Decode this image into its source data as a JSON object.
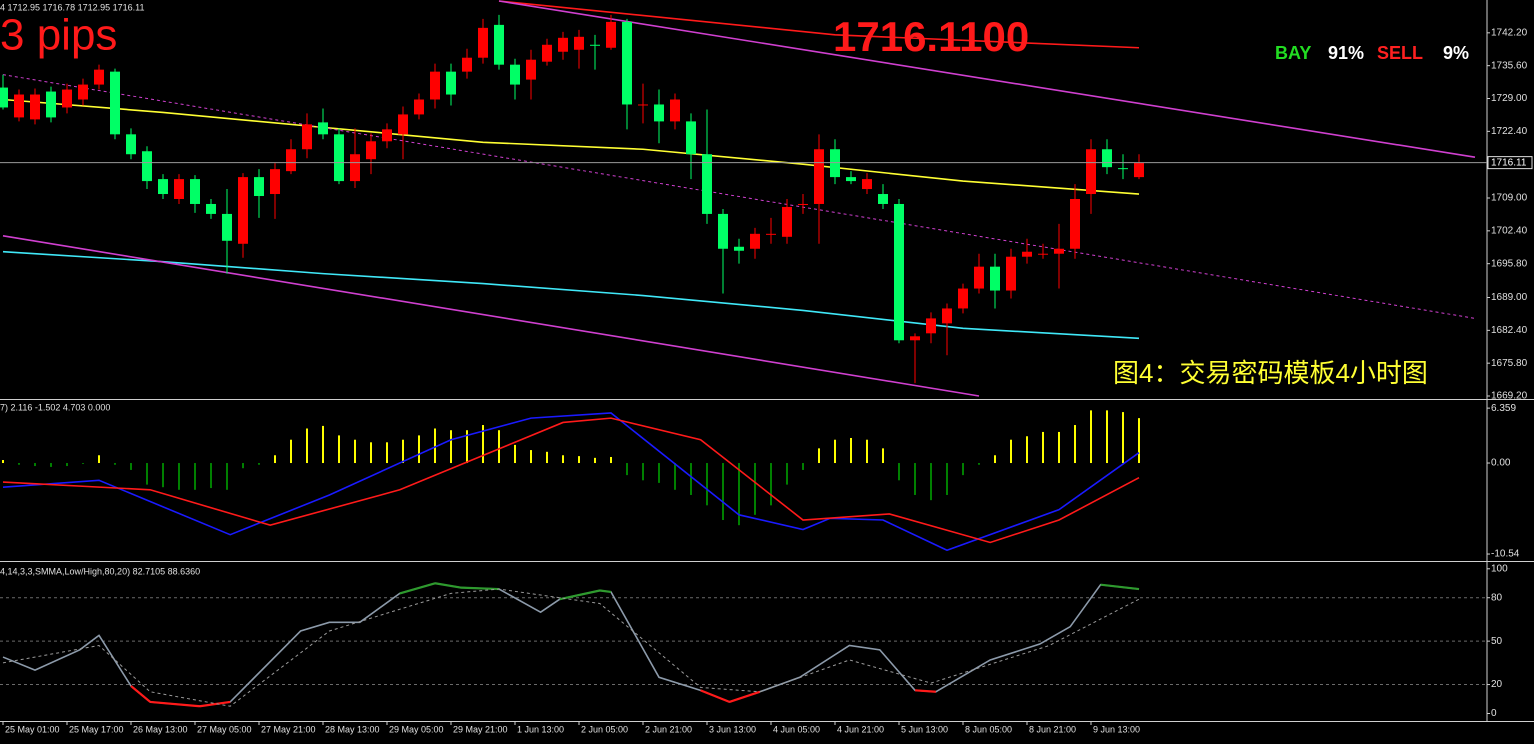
{
  "chart_data": [
    {
      "type": "candlestick",
      "header": "4  1712.95 1716.78 1712.95 1716.11",
      "categories": [
        "25 May 01:00",
        null,
        null,
        null,
        "25 May 17:00",
        null,
        null,
        null,
        "26 May 13:00",
        null,
        null,
        null,
        "27 May 05:00",
        null,
        null,
        null,
        "27 May 21:00",
        null,
        null,
        null,
        "28 May 13:00",
        null,
        null,
        null,
        "29 May 05:00",
        null,
        null,
        null,
        "29 May 21:00",
        null,
        null,
        null,
        "1 Jun 13:00",
        null,
        null,
        null,
        "2 Jun 05:00",
        null,
        null,
        null,
        "2 Jun 21:00",
        null,
        null,
        null,
        "3 Jun 13:00",
        null,
        null,
        null,
        "4 Jun 05:00",
        null,
        null,
        null,
        "4 Jun 21:00",
        null,
        null,
        null,
        "5 Jun 13:00",
        null,
        null,
        null,
        "8 Jun 05:00",
        null,
        null,
        null,
        "8 Jun 21:00",
        null,
        null,
        null,
        "9 Jun 13:00",
        null,
        null,
        null
      ],
      "ohlc": [
        [
          1731.2,
          1733.8,
          1726.8,
          1727.2
        ],
        [
          1725.2,
          1730.8,
          1724.4,
          1729.8
        ],
        [
          1724.8,
          1731,
          1723.8,
          1729.8
        ],
        [
          1730.4,
          1731.4,
          1724.2,
          1725.2
        ],
        [
          1727.2,
          1732,
          1726,
          1730.8
        ],
        [
          1728.8,
          1733,
          1727.6,
          1731.8
        ],
        [
          1731.8,
          1735.8,
          1730.8,
          1734.8
        ],
        [
          1734.4,
          1735,
          1720.8,
          1721.8
        ],
        [
          1721.8,
          1723,
          1716.8,
          1717.8
        ],
        [
          1718.4,
          1719.4,
          1710.8,
          1712.4
        ],
        [
          1712.8,
          1713.8,
          1708.8,
          1709.8
        ],
        [
          1708.8,
          1713.8,
          1707.8,
          1712.8
        ],
        [
          1712.8,
          1713.6,
          1706,
          1707.8
        ],
        [
          1707.8,
          1708.8,
          1704.8,
          1705.8
        ],
        [
          1705.8,
          1710.8,
          1693.8,
          1700.4
        ],
        [
          1699.8,
          1714,
          1697,
          1713.2
        ],
        [
          1713.2,
          1714.8,
          1705,
          1709.4
        ],
        [
          1709.8,
          1716,
          1704.8,
          1714.8
        ],
        [
          1714.4,
          1720.8,
          1713.8,
          1718.8
        ],
        [
          1718.8,
          1726,
          1717,
          1723.8
        ],
        [
          1724.2,
          1727,
          1720.8,
          1721.8
        ],
        [
          1721.8,
          1723,
          1711.8,
          1712.4
        ],
        [
          1712.4,
          1723,
          1711,
          1717.8
        ],
        [
          1716.8,
          1722,
          1713.8,
          1720.4
        ],
        [
          1720.4,
          1724,
          1719,
          1722.8
        ],
        [
          1721.8,
          1727.4,
          1716.8,
          1725.8
        ],
        [
          1725.8,
          1730,
          1724.8,
          1728.8
        ],
        [
          1728.8,
          1736,
          1727,
          1734.4
        ],
        [
          1734.4,
          1736,
          1727.6,
          1729.8
        ],
        [
          1734.4,
          1739,
          1733,
          1737.2
        ],
        [
          1737.2,
          1745,
          1736,
          1743.2
        ],
        [
          1743.8,
          1745.8,
          1734.8,
          1735.8
        ],
        [
          1735.8,
          1737,
          1728.8,
          1731.8
        ],
        [
          1732.8,
          1738.8,
          1728.8,
          1736.8
        ],
        [
          1736.4,
          1741,
          1735.6,
          1739.8
        ],
        [
          1738.4,
          1742.4,
          1736.8,
          1741.2
        ],
        [
          1738.8,
          1742.8,
          1735,
          1741.4
        ],
        [
          1739.8,
          1741.8,
          1734.8,
          1739.6
        ],
        [
          1739.2,
          1745.8,
          1738.8,
          1744.4
        ],
        [
          1744.4,
          1745,
          1722.8,
          1727.8
        ],
        [
          1727.6,
          1732,
          1724,
          1727.8
        ],
        [
          1727.8,
          1730.8,
          1720,
          1724.4
        ],
        [
          1724.4,
          1730,
          1722.8,
          1728.8
        ],
        [
          1724.4,
          1726,
          1712.8,
          1717.8
        ],
        [
          1717.8,
          1726.8,
          1703.8,
          1705.8
        ],
        [
          1705.8,
          1706.8,
          1689.8,
          1698.8
        ],
        [
          1699.2,
          1700.8,
          1695.8,
          1698.4
        ],
        [
          1698.8,
          1703,
          1696.8,
          1701.8
        ],
        [
          1701.6,
          1705,
          1699.8,
          1701.8
        ],
        [
          1701.2,
          1708.8,
          1699.8,
          1707.2
        ],
        [
          1707.6,
          1709.8,
          1705.8,
          1707.8
        ],
        [
          1707.8,
          1721.8,
          1699.8,
          1718.8
        ],
        [
          1718.8,
          1720.8,
          1711.8,
          1713.2
        ],
        [
          1713.2,
          1714.4,
          1711.8,
          1712.4
        ],
        [
          1710.8,
          1714,
          1709.8,
          1712.8
        ],
        [
          1709.8,
          1711.8,
          1706.8,
          1707.8
        ],
        [
          1707.8,
          1708.8,
          1679.8,
          1680.4
        ],
        [
          1680.4,
          1681.8,
          1671.8,
          1681.2
        ],
        [
          1681.8,
          1686,
          1679.8,
          1684.8
        ],
        [
          1683.8,
          1687.8,
          1677.4,
          1686.8
        ],
        [
          1686.8,
          1691.8,
          1685.8,
          1690.8
        ],
        [
          1690.8,
          1697.8,
          1689.8,
          1695.2
        ],
        [
          1695.2,
          1697.8,
          1686.8,
          1690.4
        ],
        [
          1690.4,
          1698.8,
          1688.8,
          1697.2
        ],
        [
          1697.2,
          1700.8,
          1695.8,
          1698.2
        ],
        [
          1697.6,
          1699.8,
          1696.8,
          1697.8
        ],
        [
          1697.8,
          1703.8,
          1690.8,
          1698.8
        ],
        [
          1698.8,
          1711.8,
          1696.8,
          1708.8
        ],
        [
          1709.8,
          1720.8,
          1705.8,
          1718.8
        ],
        [
          1718.8,
          1720.8,
          1713.8,
          1715.2
        ],
        [
          1715,
          1717.8,
          1712.8,
          1714.8
        ],
        [
          1713.2,
          1717.8,
          1712.8,
          1716.11
        ]
      ],
      "up_color": "#ff0000",
      "down_color": "#00ff66",
      "ylim": [
        1668.8,
        1748.8
      ],
      "yticks": [
        {
          "value": 1742.2,
          "label": "1742.20"
        },
        {
          "value": 1735.6,
          "label": "1735.60"
        },
        {
          "value": 1729,
          "label": "1729.00"
        },
        {
          "value": 1722.4,
          "label": "1722.40"
        },
        {
          "value": 1709,
          "label": "1709.00"
        },
        {
          "value": 1702.4,
          "label": "1702.40"
        },
        {
          "value": 1695.8,
          "label": "1695.80"
        },
        {
          "value": 1689,
          "label": "1689.00"
        },
        {
          "value": 1682.4,
          "label": "1682.40"
        },
        {
          "value": 1675.8,
          "label": "1675.80"
        },
        {
          "value": 1669.2,
          "label": "1669.20"
        }
      ],
      "last_price": 1716.11,
      "lines": [
        {
          "color": "#ffff33",
          "x": [
            0,
            10,
            20,
            30,
            40,
            50,
            60,
            71
          ],
          "values": [
            1728.8,
            1726.2,
            1723.2,
            1720.2,
            1718.8,
            1715.8,
            1712.4,
            1709.8
          ]
        },
        {
          "color": "#40e8f8",
          "x": [
            0,
            10,
            20,
            30,
            40,
            50,
            60,
            71
          ],
          "values": [
            1698.2,
            1696.2,
            1693.8,
            1691.8,
            1689.4,
            1686.4,
            1682.8,
            1680.8
          ]
        },
        {
          "color": "#ff1a1a",
          "x": [
            31,
            52,
            71
          ],
          "values": [
            1748.6,
            1741.8,
            1739.2
          ]
        },
        {
          "color": "#d040d0",
          "x": [
            31,
            92
          ],
          "values": [
            1748.6,
            1717.2
          ]
        },
        {
          "color": "#d040d0",
          "x": [
            0,
            61
          ],
          "values": [
            1701.4,
            1669.2
          ]
        },
        {
          "color": "#d040d0",
          "x": [
            0,
            92
          ],
          "values": [
            1733.8,
            1684.8
          ],
          "dash": true
        }
      ],
      "annotations": {
        "pips": "3 pips",
        "price": "1716.1100",
        "caption": "图4：交易密码模板4小时图"
      },
      "signal": {
        "categories": [
          "BAY",
          "SELL"
        ],
        "values": [
          91,
          9
        ],
        "value_labels": [
          "91%",
          "9%"
        ],
        "label_colors": [
          "#22dd22",
          "#ff2020"
        ]
      }
    },
    {
      "type": "histogram-oscillator",
      "header": "7) 2.116 -1.502 4.703 0.000",
      "values": [
        0.35,
        -0.2,
        -0.35,
        -0.45,
        -0.35,
        -0.1,
        0.9,
        -0.2,
        -0.8,
        -2.5,
        -2.8,
        -3.1,
        -3.1,
        -2.9,
        -3.1,
        -0.6,
        -0.2,
        0.9,
        2.7,
        4.0,
        4.3,
        3.2,
        2.7,
        2.4,
        2.4,
        2.7,
        3.2,
        4.0,
        3.8,
        3.8,
        4.4,
        3.8,
        2.1,
        1.5,
        1.3,
        0.9,
        0.8,
        0.6,
        0.7,
        -1.4,
        -2.0,
        -2.3,
        -3.1,
        -3.7,
        -4.9,
        -6.6,
        -7.2,
        -6.0,
        -4.9,
        -2.5,
        -0.8,
        1.7,
        2.7,
        2.9,
        2.7,
        1.7,
        -2.0,
        -3.7,
        -4.3,
        -3.7,
        -1.4,
        -0.2,
        0.9,
        2.7,
        3.1,
        3.6,
        3.6,
        4.4,
        6.1,
        6.1,
        5.9,
        5.2
      ],
      "pos_color": "#ffff00",
      "neg_color": "#008000",
      "ylim": [
        -11,
        7.3
      ],
      "yticks": [
        -10.54,
        {
          "value": 0,
          "label": "0.00"
        },
        6.359
      ],
      "lines": [
        {
          "color": "#1a1aff",
          "x": [
            0,
            6,
            14.2,
            20.4,
            28,
            33,
            38,
            46,
            50,
            51.7,
            55,
            59,
            66,
            71
          ],
          "values": [
            -2.8,
            -2.0,
            -8.3,
            -3.7,
            2.7,
            5.2,
            5.8,
            -6.0,
            -7.7,
            -6.4,
            -6.6,
            -10.1,
            -5.4,
            1.2
          ]
        },
        {
          "color": "#ff1a1a",
          "x": [
            0,
            9.2,
            16.7,
            24.8,
            35,
            38,
            43.6,
            50,
            55.4,
            61.7,
            66,
            71
          ],
          "values": [
            -2.2,
            -3.1,
            -7.2,
            -3.1,
            4.7,
            5.2,
            2.7,
            -6.6,
            -5.9,
            -9.2,
            -6.6,
            -1.7
          ]
        }
      ]
    },
    {
      "type": "line",
      "header": "4,14,3,3,SMMA,Low/High,80,20) 82.7105 88.6360",
      "ylim": [
        -4.5,
        104
      ],
      "yticks": [
        0,
        20,
        50,
        80,
        100
      ],
      "levels": [
        20,
        50,
        80
      ],
      "lines": [
        {
          "color": "#8c9aaa",
          "high_color": "#2e9a2e",
          "low_color": "#ff1a1a",
          "x": [
            0,
            2,
            4.8,
            6,
            8,
            9.2,
            12.3,
            14.2,
            18.6,
            20.4,
            22.3,
            24.8,
            27,
            28.6,
            31,
            33.6,
            34.8,
            37.3,
            38,
            41,
            43.6,
            45.4,
            47.3,
            49.8,
            52.9,
            54.8,
            57,
            58.3,
            61.7,
            64.8,
            66.7,
            68.6,
            71
          ],
          "values": [
            39,
            30,
            44,
            54,
            19,
            8,
            5,
            8,
            57,
            63,
            63,
            83,
            90,
            87,
            86,
            70,
            79,
            85,
            84,
            25,
            16,
            8,
            15,
            25,
            47,
            44,
            16,
            15,
            37,
            48,
            60,
            89,
            86
          ]
        },
        {
          "color": "#9a9a9a",
          "dash": true,
          "x": [
            0,
            6,
            9.2,
            14.2,
            20.4,
            28,
            31,
            37.3,
            43.6,
            47.3,
            52.9,
            58,
            65.4,
            71
          ],
          "values": [
            35,
            47,
            15,
            5,
            57,
            83,
            86,
            76,
            18,
            15,
            37,
            21,
            47,
            79
          ]
        }
      ]
    }
  ]
}
